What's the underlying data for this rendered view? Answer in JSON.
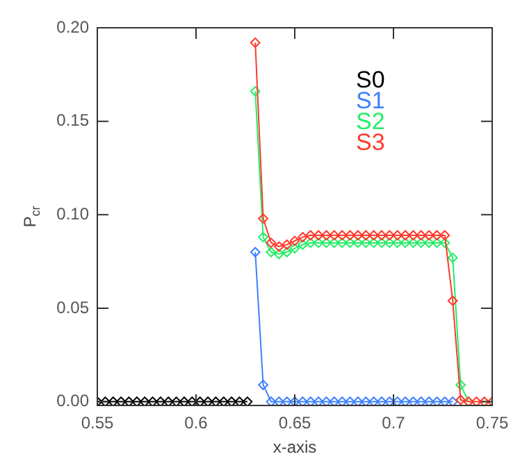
{
  "chart_data": {
    "type": "line",
    "xlabel": "x-axis",
    "ylabel": "P$_{cr}$",
    "marker": "diamond",
    "grid": false,
    "legend": "top right",
    "x": [
      0.55,
      0.554,
      0.558,
      0.562,
      0.566,
      0.57,
      0.574,
      0.578,
      0.582,
      0.586,
      0.59,
      0.594,
      0.598,
      0.602,
      0.606,
      0.61,
      0.614,
      0.618,
      0.622,
      0.626,
      0.63,
      0.634,
      0.638,
      0.642,
      0.646,
      0.65,
      0.654,
      0.658,
      0.662,
      0.666,
      0.67,
      0.674,
      0.678,
      0.682,
      0.686,
      0.69,
      0.694,
      0.698,
      0.702,
      0.706,
      0.71,
      0.714,
      0.718,
      0.722,
      0.726,
      0.73,
      0.734,
      0.738,
      0.742,
      0.746,
      0.75
    ],
    "xlim": [
      0.55,
      0.75
    ],
    "xticks": [
      0.55,
      0.6,
      0.65,
      0.7,
      0.75
    ],
    "ylim": [
      -0.002,
      0.2
    ],
    "yticks": [
      {
        "value": 0,
        "label": "0.00"
      },
      0.05,
      {
        "value": 0.1,
        "label": "0.10"
      },
      0.15,
      {
        "value": 0.2,
        "label": "0.20"
      }
    ],
    "series": [
      {
        "name": "S0",
        "color": "#000000",
        "values": [
          0,
          0,
          0,
          0,
          0,
          0,
          0,
          0,
          0,
          0,
          0,
          0,
          0,
          0,
          0,
          0,
          0,
          0,
          0,
          0,
          null,
          null,
          null,
          null,
          null,
          null,
          null,
          null,
          null,
          null,
          null,
          null,
          null,
          null,
          null,
          null,
          null,
          null,
          null,
          null,
          null,
          null,
          null,
          null,
          null,
          null,
          null,
          null,
          null,
          null,
          null
        ]
      },
      {
        "name": "S1",
        "color": "#3d7fff",
        "values": [
          null,
          null,
          null,
          null,
          null,
          null,
          null,
          null,
          null,
          null,
          null,
          null,
          null,
          null,
          null,
          null,
          null,
          null,
          null,
          null,
          0.08,
          0.009,
          0,
          0,
          0,
          0,
          0,
          0,
          0,
          0,
          0,
          0,
          0,
          0,
          0,
          0,
          0,
          0,
          0,
          0,
          0,
          0,
          0,
          0,
          0,
          0,
          null,
          null,
          null,
          null,
          null
        ]
      },
      {
        "name": "S2",
        "color": "#22ee66",
        "values": [
          null,
          null,
          null,
          null,
          null,
          null,
          null,
          null,
          null,
          null,
          null,
          null,
          null,
          null,
          null,
          null,
          null,
          null,
          null,
          null,
          0.166,
          0.088,
          0.08,
          0.079,
          0.08,
          0.082,
          0.084,
          0.085,
          0.085,
          0.085,
          0.085,
          0.085,
          0.085,
          0.085,
          0.085,
          0.085,
          0.085,
          0.085,
          0.085,
          0.085,
          0.085,
          0.085,
          0.085,
          0.085,
          0.085,
          0.077,
          0.009,
          0,
          null,
          null,
          null
        ]
      },
      {
        "name": "S3",
        "color": "#ff3a2a",
        "values": [
          null,
          null,
          null,
          null,
          null,
          null,
          null,
          null,
          null,
          null,
          null,
          null,
          null,
          null,
          null,
          null,
          null,
          null,
          null,
          null,
          0.192,
          0.098,
          0.085,
          0.083,
          0.084,
          0.086,
          0.088,
          0.089,
          0.089,
          0.089,
          0.089,
          0.089,
          0.089,
          0.089,
          0.089,
          0.089,
          0.089,
          0.089,
          0.089,
          0.089,
          0.089,
          0.089,
          0.089,
          0.089,
          0.089,
          0.054,
          0.001,
          0,
          0,
          0,
          0
        ]
      }
    ]
  }
}
